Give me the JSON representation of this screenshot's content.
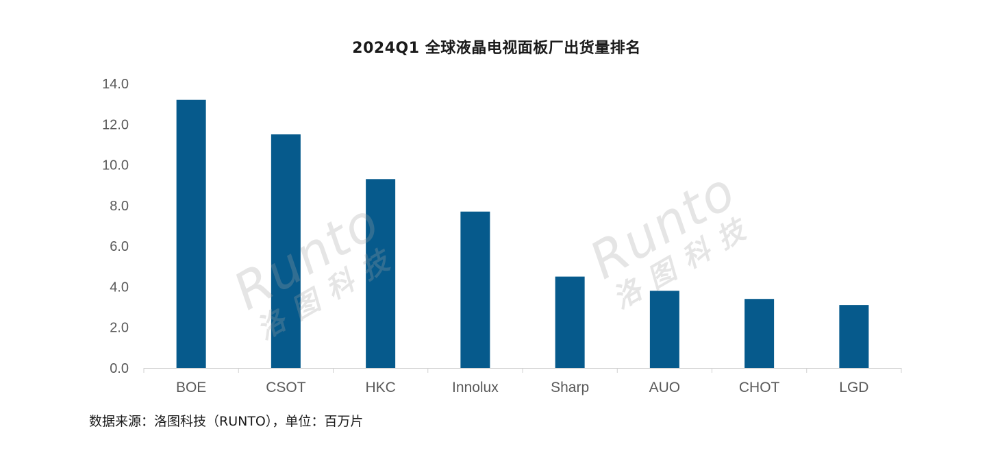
{
  "chart_data": {
    "type": "bar",
    "title": "2024Q1 全球液晶电视面板厂出货量排名",
    "categories": [
      "BOE",
      "CSOT",
      "HKC",
      "Innolux",
      "Sharp",
      "AUO",
      "CHOT",
      "LGD"
    ],
    "values": [
      13.2,
      11.5,
      9.3,
      7.7,
      4.5,
      3.8,
      3.4,
      3.1
    ],
    "ylim": [
      0,
      14
    ],
    "yticks": [
      "0.0",
      "2.0",
      "4.0",
      "6.0",
      "8.0",
      "10.0",
      "12.0",
      "14.0"
    ],
    "xlabel": "",
    "ylabel": "",
    "grid": false,
    "bar_color": "#065a8c"
  },
  "footer": {
    "source_note": "数据来源：洛图科技（RUNTO），单位：百万片"
  },
  "watermark": {
    "latin": "Runto",
    "cjk": "洛图科技"
  }
}
